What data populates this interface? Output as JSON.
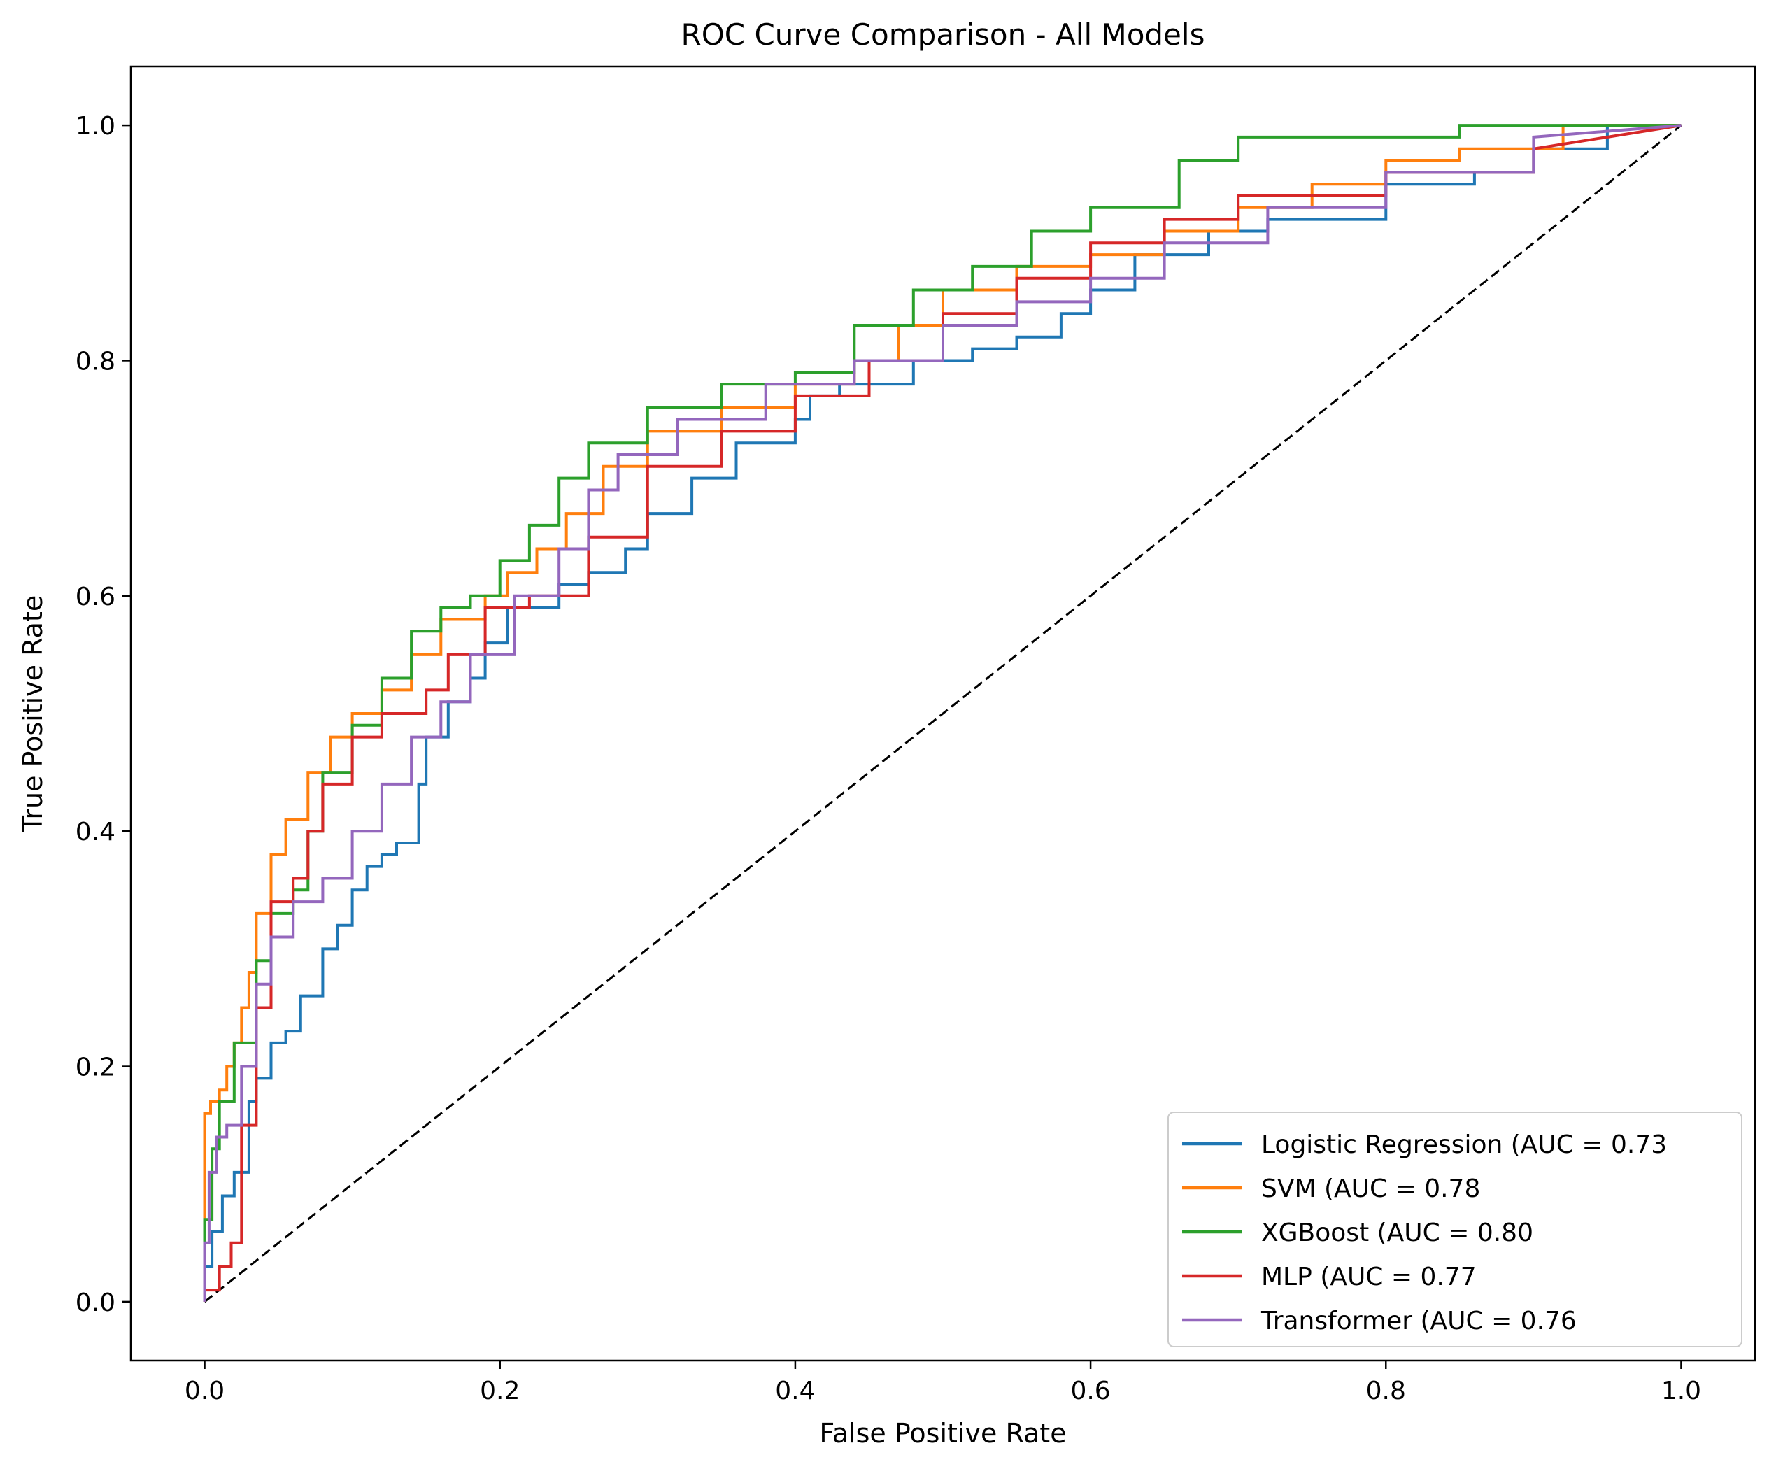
{
  "chart_data": {
    "type": "line",
    "title": "ROC Curve Comparison - All Models",
    "xlabel": "False Positive Rate",
    "ylabel": "True Positive Rate",
    "xlim": [
      -0.05,
      1.05
    ],
    "ylim": [
      -0.05,
      1.05
    ],
    "x_ticks": [
      0.0,
      0.2,
      0.4,
      0.6,
      0.8,
      1.0
    ],
    "y_ticks": [
      0.0,
      0.2,
      0.4,
      0.6,
      0.8,
      1.0
    ],
    "x_tick_labels": [
      "0.0",
      "0.2",
      "0.4",
      "0.6",
      "0.8",
      "1.0"
    ],
    "y_tick_labels": [
      "0.0",
      "0.2",
      "0.4",
      "0.6",
      "0.8",
      "1.0"
    ],
    "grid": false,
    "legend_position": "lower-right",
    "reference_line": {
      "name": "chance",
      "style": "dashed",
      "color": "#000000",
      "x": [
        0,
        1
      ],
      "y": [
        0,
        1
      ]
    },
    "series": [
      {
        "name": "Logistic Regression (AUC = 0.73",
        "color": "#1f77b4",
        "x": [
          0.0,
          0.0,
          0.005,
          0.005,
          0.012,
          0.012,
          0.02,
          0.02,
          0.03,
          0.03,
          0.035,
          0.035,
          0.045,
          0.045,
          0.055,
          0.055,
          0.065,
          0.065,
          0.08,
          0.08,
          0.09,
          0.09,
          0.1,
          0.1,
          0.11,
          0.11,
          0.12,
          0.12,
          0.13,
          0.13,
          0.145,
          0.145,
          0.15,
          0.15,
          0.165,
          0.165,
          0.18,
          0.18,
          0.19,
          0.19,
          0.205,
          0.205,
          0.24,
          0.24,
          0.26,
          0.26,
          0.285,
          0.285,
          0.3,
          0.3,
          0.33,
          0.33,
          0.36,
          0.36,
          0.4,
          0.4,
          0.41,
          0.41,
          0.43,
          0.43,
          0.48,
          0.48,
          0.52,
          0.52,
          0.55,
          0.55,
          0.58,
          0.58,
          0.6,
          0.6,
          0.63,
          0.63,
          0.68,
          0.68,
          0.72,
          0.72,
          0.8,
          0.8,
          0.86,
          0.86,
          0.9,
          0.9,
          0.95,
          0.95,
          1.0
        ],
        "y": [
          0.0,
          0.03,
          0.03,
          0.06,
          0.06,
          0.09,
          0.09,
          0.11,
          0.11,
          0.17,
          0.17,
          0.19,
          0.19,
          0.22,
          0.22,
          0.23,
          0.23,
          0.26,
          0.26,
          0.3,
          0.3,
          0.32,
          0.32,
          0.35,
          0.35,
          0.37,
          0.37,
          0.38,
          0.38,
          0.39,
          0.39,
          0.44,
          0.44,
          0.48,
          0.48,
          0.51,
          0.51,
          0.53,
          0.53,
          0.56,
          0.56,
          0.59,
          0.59,
          0.61,
          0.61,
          0.62,
          0.62,
          0.64,
          0.64,
          0.67,
          0.67,
          0.7,
          0.7,
          0.73,
          0.73,
          0.75,
          0.75,
          0.77,
          0.77,
          0.78,
          0.78,
          0.8,
          0.8,
          0.81,
          0.81,
          0.82,
          0.82,
          0.84,
          0.84,
          0.86,
          0.86,
          0.89,
          0.89,
          0.91,
          0.91,
          0.92,
          0.92,
          0.95,
          0.95,
          0.96,
          0.96,
          0.98,
          0.98,
          1.0,
          1.0
        ]
      },
      {
        "name": "SVM (AUC = 0.78",
        "color": "#ff7f0e",
        "x": [
          0.0,
          0.0,
          0.004,
          0.004,
          0.01,
          0.01,
          0.015,
          0.015,
          0.02,
          0.02,
          0.025,
          0.025,
          0.03,
          0.03,
          0.035,
          0.035,
          0.045,
          0.045,
          0.055,
          0.055,
          0.07,
          0.07,
          0.085,
          0.085,
          0.1,
          0.1,
          0.12,
          0.12,
          0.14,
          0.14,
          0.16,
          0.16,
          0.19,
          0.19,
          0.205,
          0.205,
          0.225,
          0.225,
          0.245,
          0.245,
          0.27,
          0.27,
          0.3,
          0.3,
          0.35,
          0.35,
          0.4,
          0.4,
          0.44,
          0.44,
          0.47,
          0.47,
          0.5,
          0.5,
          0.55,
          0.55,
          0.6,
          0.6,
          0.65,
          0.65,
          0.7,
          0.7,
          0.75,
          0.75,
          0.8,
          0.8,
          0.85,
          0.85,
          0.92,
          0.92,
          1.0
        ],
        "y": [
          0.0,
          0.16,
          0.16,
          0.17,
          0.17,
          0.18,
          0.18,
          0.2,
          0.2,
          0.22,
          0.22,
          0.25,
          0.25,
          0.28,
          0.28,
          0.33,
          0.33,
          0.38,
          0.38,
          0.41,
          0.41,
          0.45,
          0.45,
          0.48,
          0.48,
          0.5,
          0.5,
          0.52,
          0.52,
          0.55,
          0.55,
          0.58,
          0.58,
          0.6,
          0.6,
          0.62,
          0.62,
          0.64,
          0.64,
          0.67,
          0.67,
          0.71,
          0.71,
          0.74,
          0.74,
          0.76,
          0.76,
          0.78,
          0.78,
          0.8,
          0.8,
          0.83,
          0.83,
          0.86,
          0.86,
          0.88,
          0.88,
          0.89,
          0.89,
          0.91,
          0.91,
          0.93,
          0.93,
          0.95,
          0.95,
          0.97,
          0.97,
          0.98,
          0.98,
          1.0,
          1.0
        ]
      },
      {
        "name": "XGBoost (AUC = 0.80",
        "color": "#2ca02c",
        "x": [
          0.0,
          0.0,
          0.005,
          0.005,
          0.01,
          0.01,
          0.02,
          0.02,
          0.035,
          0.035,
          0.045,
          0.045,
          0.06,
          0.06,
          0.07,
          0.07,
          0.08,
          0.08,
          0.1,
          0.1,
          0.12,
          0.12,
          0.14,
          0.14,
          0.16,
          0.16,
          0.18,
          0.18,
          0.2,
          0.2,
          0.22,
          0.22,
          0.24,
          0.24,
          0.26,
          0.26,
          0.3,
          0.3,
          0.35,
          0.35,
          0.4,
          0.4,
          0.44,
          0.44,
          0.48,
          0.48,
          0.52,
          0.52,
          0.56,
          0.56,
          0.6,
          0.6,
          0.66,
          0.66,
          0.7,
          0.7,
          0.85,
          0.85,
          1.0
        ],
        "y": [
          0.0,
          0.07,
          0.07,
          0.13,
          0.13,
          0.17,
          0.17,
          0.22,
          0.22,
          0.29,
          0.29,
          0.33,
          0.33,
          0.35,
          0.35,
          0.4,
          0.4,
          0.45,
          0.45,
          0.49,
          0.49,
          0.53,
          0.53,
          0.57,
          0.57,
          0.59,
          0.59,
          0.6,
          0.6,
          0.63,
          0.63,
          0.66,
          0.66,
          0.7,
          0.7,
          0.73,
          0.73,
          0.76,
          0.76,
          0.78,
          0.78,
          0.79,
          0.79,
          0.83,
          0.83,
          0.86,
          0.86,
          0.88,
          0.88,
          0.91,
          0.91,
          0.93,
          0.93,
          0.97,
          0.97,
          0.99,
          0.99,
          1.0,
          1.0
        ]
      },
      {
        "name": "MLP (AUC = 0.77",
        "color": "#d62728",
        "x": [
          0.0,
          0.0,
          0.01,
          0.01,
          0.018,
          0.018,
          0.025,
          0.025,
          0.035,
          0.035,
          0.045,
          0.045,
          0.06,
          0.06,
          0.07,
          0.07,
          0.08,
          0.08,
          0.1,
          0.1,
          0.12,
          0.12,
          0.15,
          0.15,
          0.165,
          0.165,
          0.19,
          0.19,
          0.22,
          0.22,
          0.26,
          0.26,
          0.3,
          0.3,
          0.35,
          0.35,
          0.4,
          0.4,
          0.45,
          0.45,
          0.5,
          0.5,
          0.55,
          0.55,
          0.6,
          0.6,
          0.65,
          0.65,
          0.7,
          0.7,
          0.8,
          0.8,
          0.9,
          0.9,
          1.0
        ],
        "y": [
          0.0,
          0.01,
          0.01,
          0.03,
          0.03,
          0.05,
          0.05,
          0.15,
          0.15,
          0.25,
          0.25,
          0.34,
          0.34,
          0.36,
          0.36,
          0.4,
          0.4,
          0.44,
          0.44,
          0.48,
          0.48,
          0.5,
          0.5,
          0.52,
          0.52,
          0.55,
          0.55,
          0.59,
          0.59,
          0.6,
          0.6,
          0.65,
          0.65,
          0.71,
          0.71,
          0.74,
          0.74,
          0.77,
          0.77,
          0.8,
          0.8,
          0.84,
          0.84,
          0.87,
          0.87,
          0.9,
          0.9,
          0.92,
          0.92,
          0.94,
          0.94,
          0.96,
          0.96,
          0.98,
          1.0
        ]
      },
      {
        "name": "Transformer (AUC = 0.76",
        "color": "#9467bd",
        "x": [
          0.0,
          0.0,
          0.003,
          0.003,
          0.008,
          0.008,
          0.015,
          0.015,
          0.025,
          0.025,
          0.035,
          0.035,
          0.045,
          0.045,
          0.06,
          0.06,
          0.08,
          0.08,
          0.1,
          0.1,
          0.12,
          0.12,
          0.14,
          0.14,
          0.16,
          0.16,
          0.18,
          0.18,
          0.21,
          0.21,
          0.24,
          0.24,
          0.26,
          0.26,
          0.28,
          0.28,
          0.32,
          0.32,
          0.38,
          0.38,
          0.44,
          0.44,
          0.5,
          0.5,
          0.55,
          0.55,
          0.6,
          0.6,
          0.65,
          0.65,
          0.72,
          0.72,
          0.8,
          0.8,
          0.9,
          0.9,
          1.0
        ],
        "y": [
          0.0,
          0.05,
          0.05,
          0.11,
          0.11,
          0.14,
          0.14,
          0.15,
          0.15,
          0.2,
          0.2,
          0.27,
          0.27,
          0.31,
          0.31,
          0.34,
          0.34,
          0.36,
          0.36,
          0.4,
          0.4,
          0.44,
          0.44,
          0.48,
          0.48,
          0.51,
          0.51,
          0.55,
          0.55,
          0.6,
          0.6,
          0.64,
          0.64,
          0.69,
          0.69,
          0.72,
          0.72,
          0.75,
          0.75,
          0.78,
          0.78,
          0.8,
          0.8,
          0.83,
          0.83,
          0.85,
          0.85,
          0.87,
          0.87,
          0.9,
          0.9,
          0.93,
          0.93,
          0.96,
          0.96,
          0.99,
          1.0
        ]
      }
    ]
  }
}
